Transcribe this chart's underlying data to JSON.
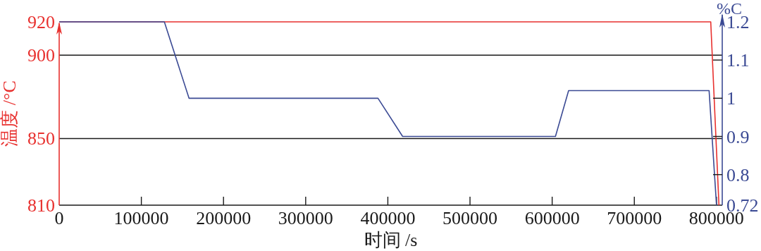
{
  "chart_data": {
    "type": "line",
    "xlabel": "时间 /s",
    "ylabel": "温度 /°C",
    "y2label": "%C",
    "xlim": [
      0,
      807000
    ],
    "xticks": [
      0,
      100000,
      200000,
      300000,
      400000,
      500000,
      600000,
      700000,
      800000
    ],
    "ylim": [
      810,
      920
    ],
    "yticks": [
      810,
      850,
      900,
      920
    ],
    "y2lim": [
      0.72,
      1.2
    ],
    "y2ticks": [
      0.72,
      0.8,
      0.9,
      1,
      1.1,
      1.2
    ],
    "grid": "y",
    "series": [
      {
        "color": "#e8312f",
        "x": [
          0,
          793000,
          803000
        ],
        "values": [
          920,
          920,
          810
        ]
      },
      {
        "color": "#3b4a94",
        "axis": "y2",
        "x": [
          0,
          128000,
          158000,
          388000,
          418000,
          604000,
          620000,
          791000,
          800000
        ],
        "values": [
          1.2,
          1.2,
          1,
          1,
          0.9,
          0.9,
          1.02,
          1.02,
          0.72
        ]
      }
    ]
  }
}
